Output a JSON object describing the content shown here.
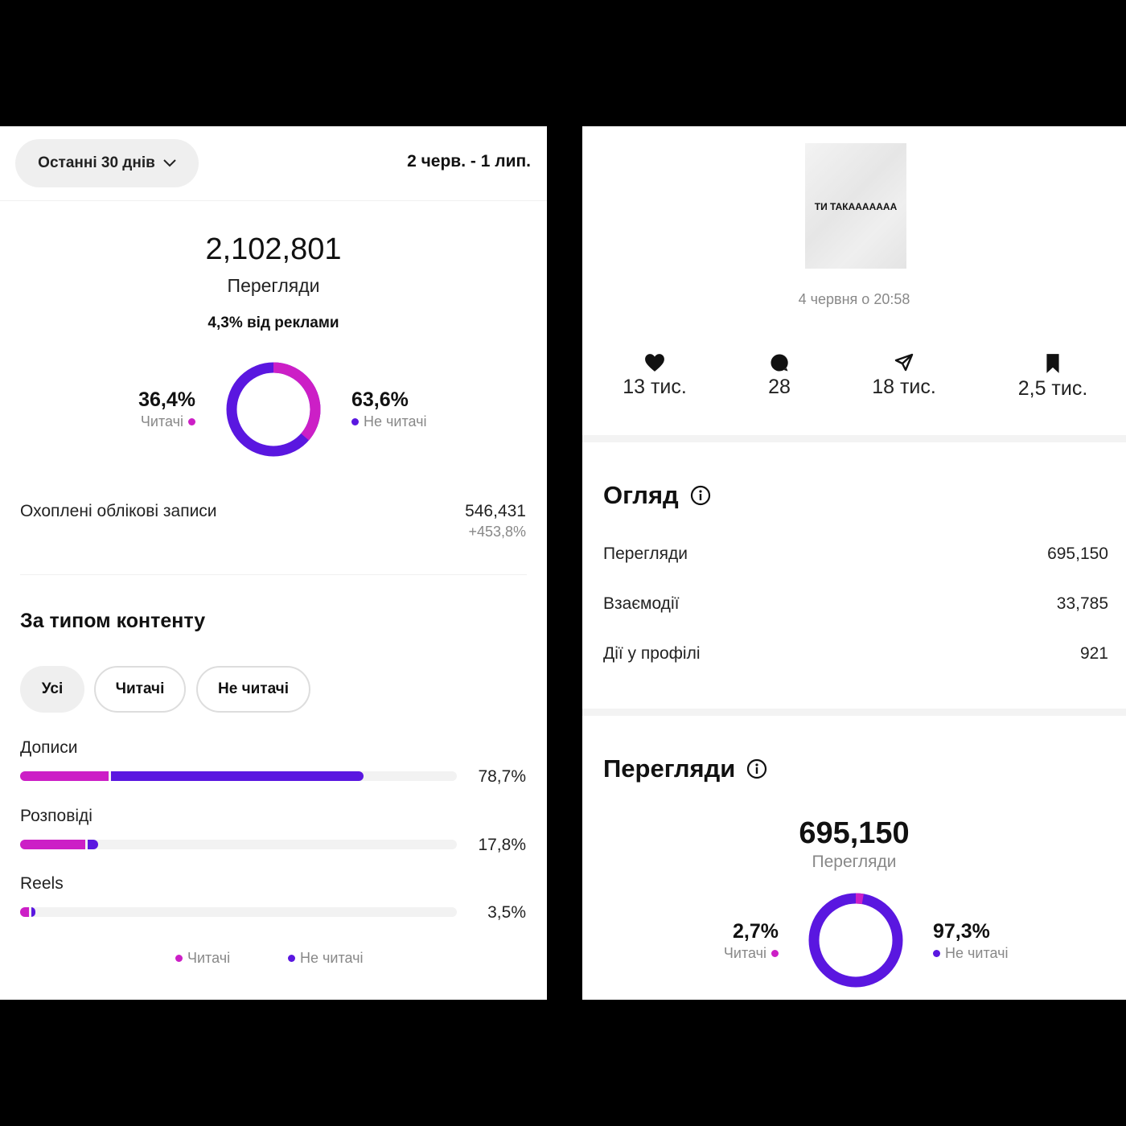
{
  "left": {
    "period_label": "Останні 30 днів",
    "date_range": "2 черв. - 1 лип.",
    "views_total": "2,102,801",
    "views_label": "Перегляди",
    "ads_note": "4,3% від реклами",
    "followers_pct": "36,4%",
    "followers_label": "Читачі",
    "nonfollowers_pct": "63,6%",
    "nonfollowers_label": "Не читачі",
    "followers_share": 36.4,
    "accounts_reached_label": "Охоплені облікові записи",
    "accounts_reached_value": "546,431",
    "accounts_reached_change": "+453,8%",
    "content_type_title": "За типом контенту",
    "filters": [
      "Усі",
      "Читачі",
      "Не читачі"
    ],
    "content_rows": [
      {
        "label": "Дописи",
        "value": "78,7%",
        "followers": 20.6,
        "nonfollowers": 58.1
      },
      {
        "label": "Розповіді",
        "value": "17,8%",
        "followers": 15.3,
        "nonfollowers": 2.5
      },
      {
        "label": "Reels",
        "value": "3,5%",
        "followers": 2.4,
        "nonfollowers": 1.1
      }
    ],
    "legend_followers": "Читачі",
    "legend_nonfollowers": "Не читачі"
  },
  "right": {
    "thumb_text": "ТИ ТАКААААААА",
    "timestamp": "4 червня о 20:58",
    "stats": {
      "likes": "13 тис.",
      "comments": "28",
      "shares": "18 тис.",
      "saves": "2,5 тис."
    },
    "overview_title": "Огляд",
    "overview_rows": [
      {
        "label": "Перегляди",
        "value": "695,150"
      },
      {
        "label": "Взаємодії",
        "value": "33,785"
      },
      {
        "label": "Дії у профілі",
        "value": "921"
      }
    ],
    "views_title": "Перегляди",
    "views_total": "695,150",
    "views_label": "Перегляди",
    "followers_pct": "2,7%",
    "followers_label": "Читачі",
    "nonfollowers_pct": "97,3%",
    "nonfollowers_label": "Не читачі",
    "followers_share": 2.7
  },
  "colors": {
    "followers": "#cc1fc6",
    "nonfollowers": "#5a17e0",
    "track": "#f2f2f2"
  }
}
